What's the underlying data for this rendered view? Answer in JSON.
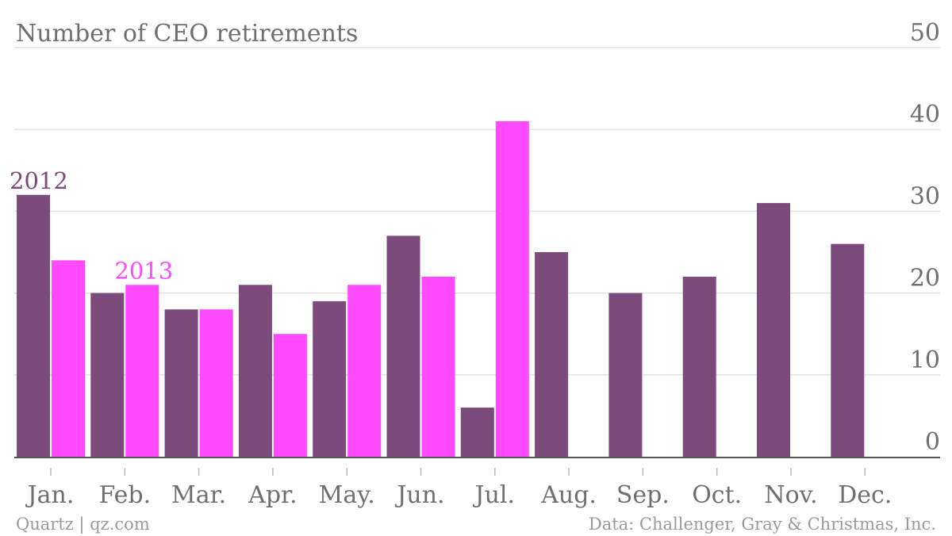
{
  "chart_data": {
    "type": "bar",
    "title": "Number of CEO retirements",
    "categories": [
      "Jan.",
      "Feb.",
      "Mar.",
      "Apr.",
      "May.",
      "Jun.",
      "Jul.",
      "Aug.",
      "Sep.",
      "Oct.",
      "Nov.",
      "Dec."
    ],
    "series": [
      {
        "name": "2012",
        "color": "#7d4a7c",
        "values": [
          32,
          20,
          18,
          21,
          19,
          27,
          6,
          25,
          20,
          22,
          31,
          26
        ]
      },
      {
        "name": "2013",
        "color": "#ff4aff",
        "values": [
          24,
          21,
          18,
          15,
          21,
          22,
          41,
          null,
          null,
          null,
          null,
          null
        ]
      }
    ],
    "ylim": [
      0,
      50
    ],
    "yticks": [
      0,
      10,
      20,
      30,
      40,
      50
    ],
    "y_axis_side": "right",
    "grid": true,
    "legend": "inline labels above first bars",
    "xlabel": "",
    "ylabel": ""
  },
  "footer": {
    "source_left": "Quartz | qz.com",
    "source_right": "Data: Challenger, Gray & Christmas, Inc."
  },
  "colors": {
    "grid": "#e2e2e2",
    "axis": "#555555",
    "text": "#6f6f6f",
    "footer": "#9a9a9a"
  }
}
